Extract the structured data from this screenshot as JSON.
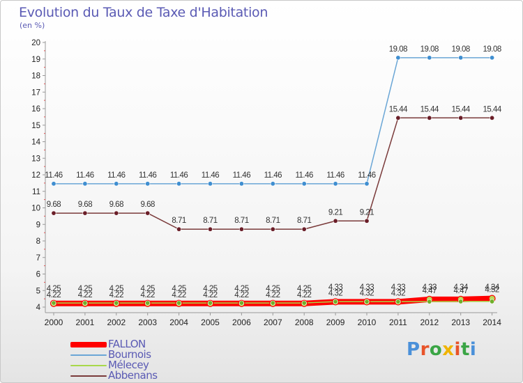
{
  "header": {
    "title": "Evolution du Taux de Taxe d'Habitation",
    "unit": "(en %)"
  },
  "logo": {
    "text": "Proxiti",
    "colors": [
      "#4a90d9",
      "#e8542a",
      "#3aa545",
      "#f0b400",
      "#e8542a",
      "#3aa545",
      "#4a90d9"
    ]
  },
  "chart_data": {
    "type": "line",
    "title": "Evolution du Taux de Taxe d'Habitation",
    "ylabel": "(en %)",
    "xlabel": "",
    "x": [
      "2000",
      "2001",
      "2002",
      "2003",
      "2004",
      "2005",
      "2006",
      "2007",
      "2008",
      "2009",
      "2010",
      "2011",
      "2012",
      "2013",
      "2014"
    ],
    "yticks": [
      "4",
      "5",
      "6",
      "7",
      "8",
      "9",
      "10",
      "11",
      "12",
      "13",
      "14",
      "15",
      "16",
      "17",
      "18",
      "19",
      "20"
    ],
    "ylim": [
      4,
      20
    ],
    "grid": false,
    "legend_position": "bottom-left",
    "series": [
      {
        "name": "FALLON",
        "color": "#ff0000",
        "thick": true,
        "values": [
          4.22,
          4.22,
          4.22,
          4.22,
          4.22,
          4.22,
          4.22,
          4.22,
          4.22,
          4.32,
          4.32,
          4.32,
          4.47,
          4.47,
          4.52
        ],
        "labels": [
          "4.22",
          "4.22",
          "4.22",
          "4.22",
          "4.22",
          "4.22",
          "4.22",
          "4.22",
          "4.22",
          "4.32",
          "4.32",
          "4.32",
          "4.47",
          "4.47",
          "4.52"
        ]
      },
      {
        "name": "Bournois",
        "color": "#6aa6d6",
        "marker": "#3f8ed0",
        "values": [
          11.46,
          11.46,
          11.46,
          11.46,
          11.46,
          11.46,
          11.46,
          11.46,
          11.46,
          11.46,
          11.46,
          19.08,
          19.08,
          19.08,
          19.08
        ],
        "labels": [
          "11.46",
          "11.46",
          "11.46",
          "11.46",
          "11.46",
          "11.46",
          "11.46",
          "11.46",
          "11.46",
          "11.46",
          "11.46",
          "19.08",
          "19.08",
          "19.08",
          "19.08"
        ]
      },
      {
        "name": "Mélecey",
        "color": "#a8d84a",
        "marker": "#6faf2a",
        "values": [
          4.25,
          4.25,
          4.25,
          4.25,
          4.25,
          4.25,
          4.25,
          4.25,
          4.25,
          4.33,
          4.33,
          4.33,
          4.33,
          4.34,
          4.34
        ],
        "labels": [
          "4.25",
          "4.25",
          "4.25",
          "4.25",
          "4.25",
          "4.25",
          "4.25",
          "4.25",
          "4.25",
          "4.33",
          "4.33",
          "4.33",
          "4.33",
          "4.34",
          "4.34"
        ]
      },
      {
        "name": "Abbenans",
        "color": "#7a3a3a",
        "marker": "#6a1e28",
        "values": [
          9.68,
          9.68,
          9.68,
          9.68,
          8.71,
          8.71,
          8.71,
          8.71,
          8.71,
          9.21,
          9.21,
          15.44,
          15.44,
          15.44,
          15.44
        ],
        "labels": [
          "9.68",
          "9.68",
          "9.68",
          "9.68",
          "8.71",
          "8.71",
          "8.71",
          "8.71",
          "8.71",
          "9.21",
          "9.21",
          "15.44",
          "15.44",
          "15.44",
          "15.44"
        ]
      }
    ]
  }
}
